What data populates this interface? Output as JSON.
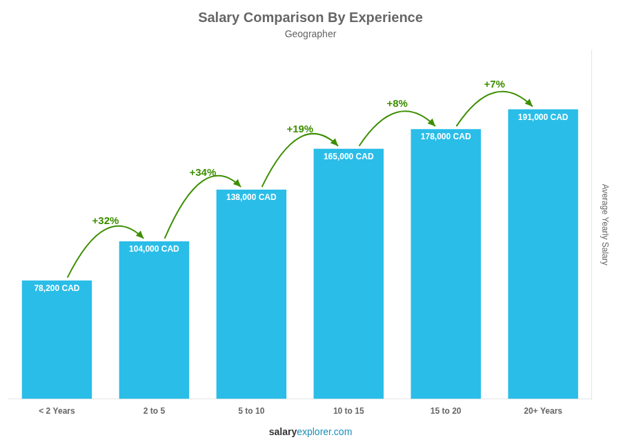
{
  "chart_data": {
    "type": "bar",
    "title": "Salary Comparison By Experience",
    "subtitle": "Geographer",
    "y_label": "Average Yearly Salary",
    "categories": [
      "< 2 Years",
      "2 to 5",
      "5 to 10",
      "10 to 15",
      "15 to 20",
      "20+ Years"
    ],
    "values": [
      78200,
      104000,
      138000,
      165000,
      178000,
      191000
    ],
    "value_labels": [
      "78,200 CAD",
      "104,000 CAD",
      "138,000 CAD",
      "165,000 CAD",
      "178,000 CAD",
      "191,000 CAD"
    ],
    "data_labels": true,
    "color": "#2abde8",
    "ylim": [
      0,
      230000
    ],
    "tick_labels": "x",
    "grid": false,
    "annotations": [
      "+32%",
      "+34%",
      "+19%",
      "+8%",
      "+7%"
    ],
    "footer": [
      "salary",
      "explorer.com"
    ]
  }
}
